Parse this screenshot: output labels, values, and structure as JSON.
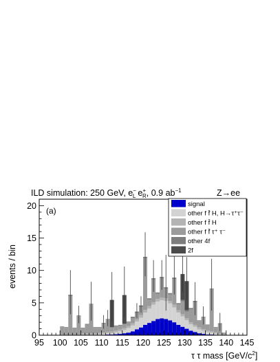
{
  "header": {
    "title_main": "ILD simulation: 250 GeV, e",
    "title_el_sup": "−",
    "title_el_sub": "L",
    "title_ep": "e",
    "title_ep_sup": "+",
    "title_ep_sub": "R",
    "title_lumi": ", 0.9 ab",
    "title_lumi_sup": "−1",
    "channel": "Z→ee",
    "panel": "(a)"
  },
  "axes": {
    "ylabel": "events / bin",
    "xlabel_main": "τ τ mass [GeV/c",
    "xlabel_sup": "2",
    "xlabel_end": "]",
    "xticks": [
      "95",
      "100",
      "105",
      "110",
      "115",
      "120",
      "125",
      "130",
      "135",
      "140",
      "145"
    ],
    "yticks": [
      "0",
      "5",
      "10",
      "15",
      "20"
    ]
  },
  "legend": [
    {
      "label": "signal",
      "color": "#0000cc"
    },
    {
      "label": "other f f̄ H, H→τ⁺τ⁻",
      "color": "#d3d3d3"
    },
    {
      "label": "other f f̄ H",
      "color": "#b4b4b4"
    },
    {
      "label": "other f f̄ τ⁺ τ⁻",
      "color": "#9b9b9b"
    },
    {
      "label": "other 4f",
      "color": "#7d7d7d"
    },
    {
      "label": "2f",
      "color": "#4b4b4b"
    }
  ],
  "chart_data": {
    "type": "bar",
    "stacked": true,
    "title": "ILD simulation: 250 GeV, e−L e+R , 0.9 ab−1",
    "annotation": "Z→ee",
    "panel_label": "(a)",
    "xlabel": "τ τ mass [GeV/c2]",
    "ylabel": "events / bin",
    "xlim": [
      95,
      145
    ],
    "ylim": [
      0,
      21
    ],
    "bin_width": 1,
    "bin_low_edges": [
      100,
      101,
      102,
      103,
      104,
      105,
      106,
      107,
      108,
      109,
      110,
      111,
      112,
      113,
      114,
      115,
      116,
      117,
      118,
      119,
      120,
      121,
      122,
      123,
      124,
      125,
      126,
      127,
      128,
      129,
      130,
      131,
      132,
      133,
      134,
      135,
      136,
      137,
      138,
      139
    ],
    "series": [
      {
        "name": "signal",
        "color": "#0000cc",
        "values": [
          0,
          0,
          0,
          0,
          0,
          0,
          0,
          0,
          0,
          0.05,
          0.05,
          0.1,
          0.1,
          0.15,
          0.2,
          0.3,
          0.4,
          0.6,
          0.9,
          1.2,
          1.6,
          1.9,
          2.2,
          2.5,
          2.6,
          2.5,
          2.3,
          2.0,
          1.6,
          1.3,
          1.0,
          0.7,
          0.5,
          0.3,
          0.2,
          0.1,
          0.1,
          0.05,
          0,
          0
        ]
      },
      {
        "name": "other f f̄ H, H→τ⁺τ⁻",
        "color": "#d3d3d3",
        "values": [
          0.05,
          0.05,
          0.05,
          0.05,
          0.05,
          0.1,
          0.1,
          0.1,
          0.1,
          0.1,
          0.15,
          0.2,
          0.2,
          0.3,
          0.4,
          0.5,
          0.7,
          0.9,
          1.2,
          1.5,
          1.9,
          2.2,
          2.5,
          2.7,
          2.8,
          2.8,
          2.6,
          2.3,
          1.9,
          1.6,
          1.3,
          1.0,
          0.8,
          0.6,
          0.5,
          0.4,
          0.3,
          0.2,
          0.1,
          0.05
        ]
      },
      {
        "name": "other f f̄ H",
        "color": "#b4b4b4",
        "values": [
          0.1,
          0.1,
          0.1,
          0.1,
          0.1,
          0.15,
          0.15,
          0.15,
          0.15,
          0.2,
          0.2,
          0.2,
          0.25,
          0.25,
          0.3,
          0.3,
          0.3,
          0.35,
          0.35,
          0.4,
          0.4,
          0.4,
          0.4,
          0.4,
          0.4,
          0.4,
          0.4,
          0.4,
          0.35,
          0.35,
          0.35,
          0.3,
          0.3,
          0.3,
          0.25,
          0.25,
          0.2,
          0.2,
          0.15,
          0.1
        ]
      },
      {
        "name": "other f f̄ τ⁺ τ⁻",
        "color": "#9b9b9b",
        "values": [
          1.1,
          1.0,
          5.9,
          0.9,
          2.8,
          0.8,
          1.4,
          4.5,
          0.9,
          0.8,
          1.4,
          1.9,
          0.6,
          0.7,
          0.6,
          0.6,
          0.6,
          0.8,
          1.0,
          1.3,
          8.0,
          1.0,
          3.5,
          0.8,
          3.0,
          1.5,
          1.0,
          4.0,
          0.9,
          2.0,
          1.0,
          2.0,
          3.5,
          1.0,
          1.8,
          0.8,
          6.5,
          0.7,
          1.5,
          0.2
        ]
      },
      {
        "name": "other 4f",
        "color": "#7d7d7d",
        "values": [
          0.1,
          0.1,
          0.2,
          0.1,
          0.1,
          0.1,
          0.1,
          0.1,
          0.1,
          0.1,
          0.1,
          0.1,
          0.1,
          0.1,
          0.1,
          0.1,
          0.1,
          0.2,
          0.2,
          0.2,
          0.2,
          0.2,
          0.2,
          0.2,
          0.2,
          0.2,
          0.2,
          0.2,
          0.2,
          0.2,
          0.2,
          0.2,
          0.2,
          0.1,
          0.1,
          0.1,
          0.1,
          0.1,
          0.1,
          0.05
        ]
      },
      {
        "name": "2f",
        "color": "#4b4b4b",
        "values": [
          0,
          0,
          0,
          0,
          0,
          0,
          0,
          0,
          0,
          0,
          0,
          0,
          4.2,
          0,
          0,
          4.4,
          0,
          0,
          0,
          0,
          0,
          0,
          0,
          0,
          0,
          0,
          0,
          0,
          0,
          4.0,
          4.5,
          0,
          0,
          0,
          0,
          0,
          0,
          0,
          0,
          0
        ]
      }
    ],
    "error_bars": [
      {
        "bin": 102,
        "up": 3.8,
        "down": 3.0
      },
      {
        "bin": 104,
        "up": 1.5,
        "down": 1.2
      },
      {
        "bin": 107,
        "up": 3.4,
        "down": 2.6
      },
      {
        "bin": 110,
        "up": 1.2,
        "down": 0.9
      },
      {
        "bin": 111,
        "up": 1.4,
        "down": 1.1
      },
      {
        "bin": 112,
        "up": 4.3,
        "down": 3.3
      },
      {
        "bin": 115,
        "up": 4.4,
        "down": 3.4
      },
      {
        "bin": 118,
        "up": 1.3,
        "down": 1.0
      },
      {
        "bin": 119,
        "up": 1.4,
        "down": 1.1
      },
      {
        "bin": 120,
        "up": 3.8,
        "down": 3.0
      },
      {
        "bin": 122,
        "up": 2.8,
        "down": 2.1
      },
      {
        "bin": 124,
        "up": 2.6,
        "down": 2.0
      },
      {
        "bin": 125,
        "up": 5.0,
        "down": 3.6
      },
      {
        "bin": 127,
        "up": 3.3,
        "down": 2.6
      },
      {
        "bin": 129,
        "up": 3.6,
        "down": 2.8
      },
      {
        "bin": 130,
        "up": 3.7,
        "down": 2.9
      },
      {
        "bin": 132,
        "up": 2.9,
        "down": 2.2
      },
      {
        "bin": 134,
        "up": 1.6,
        "down": 1.2
      },
      {
        "bin": 136,
        "up": 4.6,
        "down": 3.4
      },
      {
        "bin": 138,
        "up": 1.6,
        "down": 1.2
      }
    ],
    "grid": false,
    "legend_position": "top-right"
  }
}
